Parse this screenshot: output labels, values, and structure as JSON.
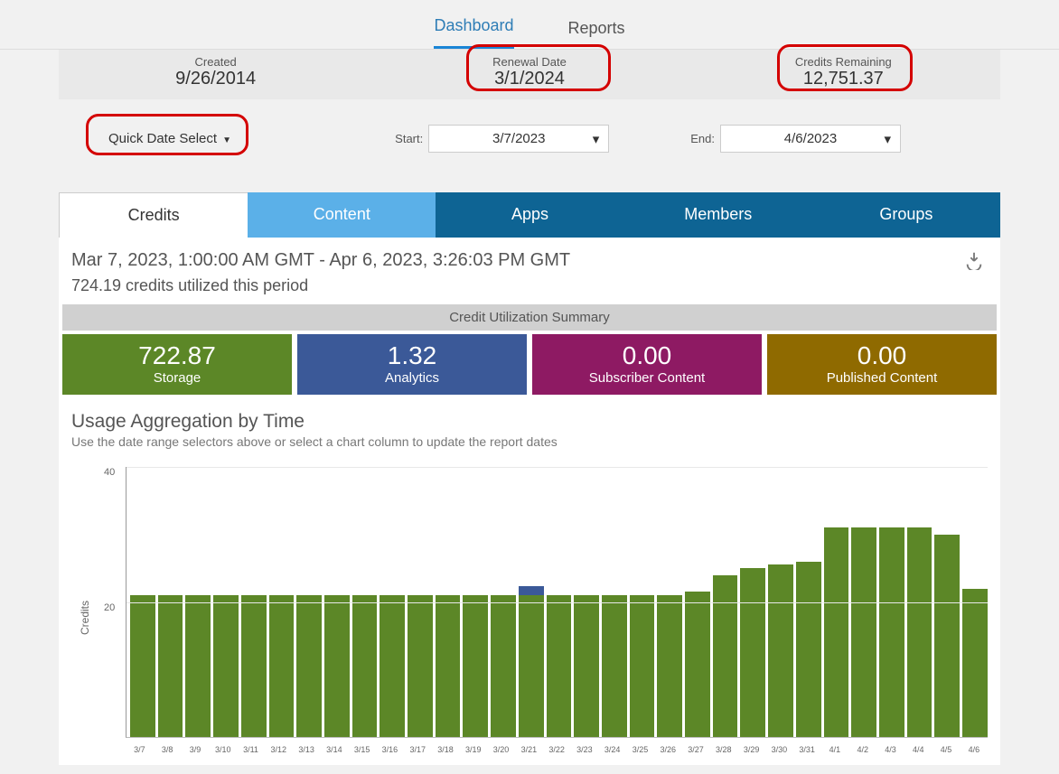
{
  "nav": {
    "dashboard": "Dashboard",
    "reports": "Reports"
  },
  "info": {
    "created_lbl": "Created",
    "created_val": "9/26/2014",
    "renewal_lbl": "Renewal Date",
    "renewal_val": "3/1/2024",
    "credits_lbl": "Credits Remaining",
    "credits_val": "12,751.37"
  },
  "filters": {
    "quick": "Quick Date Select",
    "start_lbl": "Start:",
    "start_val": "3/7/2023",
    "end_lbl": "End:",
    "end_val": "4/6/2023"
  },
  "tabs": {
    "credits": "Credits",
    "content": "Content",
    "apps": "Apps",
    "members": "Members",
    "groups": "Groups",
    "colors": {
      "content": "#5bb0e8",
      "apps": "#0e6494",
      "members": "#0e6494",
      "groups": "#0e6494"
    }
  },
  "period": {
    "range": "Mar 7, 2023, 1:00:00 AM GMT - Apr 6, 2023, 3:26:03 PM GMT",
    "utilized": "724.19 credits utilized this period",
    "summary_hdr": "Credit Utilization Summary"
  },
  "cards": {
    "storage": {
      "v": "722.87",
      "l": "Storage",
      "c": "#5c8727"
    },
    "analytics": {
      "v": "1.32",
      "l": "Analytics",
      "c": "#3b5998"
    },
    "subscriber": {
      "v": "0.00",
      "l": "Subscriber Content",
      "c": "#8e1a63"
    },
    "published": {
      "v": "0.00",
      "l": "Published Content",
      "c": "#8f6a00"
    }
  },
  "chart": {
    "title": "Usage Aggregation by Time",
    "sub": "Use the date range selectors above or select a chart column to update the report dates",
    "ylabel": "Credits",
    "ymax": 40,
    "yticks": [
      40,
      20
    ],
    "bar_color": "#5c8727",
    "analytics_color": "#3b5998",
    "categories": [
      "3/7",
      "3/8",
      "3/9",
      "3/10",
      "3/11",
      "3/12",
      "3/13",
      "3/14",
      "3/15",
      "3/16",
      "3/17",
      "3/18",
      "3/19",
      "3/20",
      "3/21",
      "3/22",
      "3/23",
      "3/24",
      "3/25",
      "3/26",
      "3/27",
      "3/28",
      "3/29",
      "3/30",
      "3/31",
      "4/1",
      "4/2",
      "4/3",
      "4/4",
      "4/5",
      "4/6"
    ],
    "storage_vals": [
      21,
      21,
      21,
      21,
      21,
      21,
      21,
      21,
      21,
      21,
      21,
      21,
      21,
      21,
      21,
      21,
      21,
      21,
      21,
      21,
      21.5,
      24,
      25,
      25.5,
      26,
      31,
      31,
      31,
      31,
      30,
      22
    ],
    "analytics_vals": [
      0,
      0,
      0,
      0,
      0,
      0,
      0,
      0,
      0,
      0,
      0,
      0,
      0,
      0,
      1.3,
      0,
      0,
      0,
      0,
      0,
      0,
      0,
      0,
      0,
      0,
      0,
      0,
      0,
      0,
      0,
      0
    ]
  }
}
